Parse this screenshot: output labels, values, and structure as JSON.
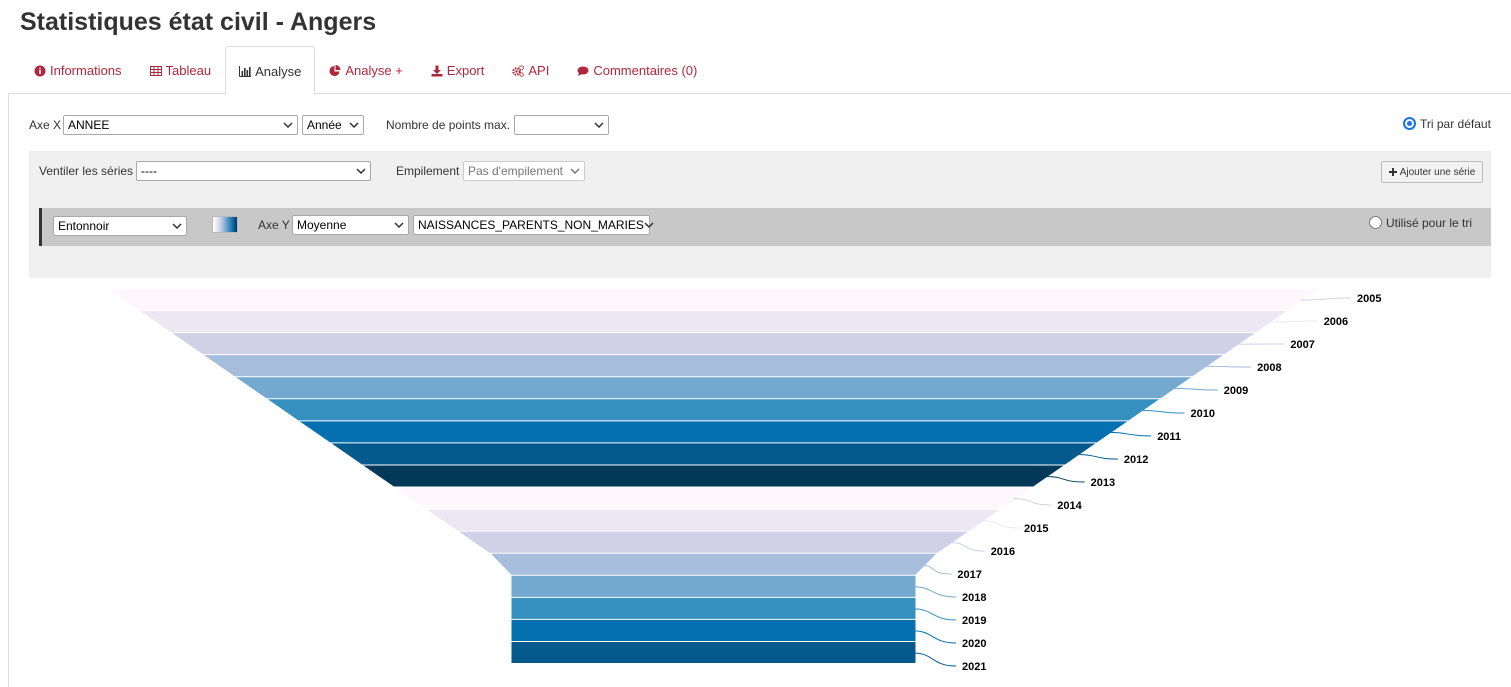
{
  "page": {
    "title": "Statistiques état civil - Angers"
  },
  "tabs": [
    {
      "label": "Informations",
      "icon": "info-circle-icon"
    },
    {
      "label": "Tableau",
      "icon": "table-icon"
    },
    {
      "label": "Analyse",
      "icon": "bar-chart-icon",
      "active": true
    },
    {
      "label": "Analyse +",
      "icon": "pie-chart-icon"
    },
    {
      "label": "Export",
      "icon": "download-icon"
    },
    {
      "label": "API",
      "icon": "cogs-icon"
    },
    {
      "label": "Commentaires (0)",
      "icon": "comments-icon"
    }
  ],
  "controls": {
    "axe_x_label": "Axe X",
    "axe_x_value": "ANNEE",
    "axe_x_format": "Année",
    "max_points_label": "Nombre de points max.",
    "max_points_value": "",
    "sort_default_label": "Tri par défaut",
    "ventiler_label": "Ventiler les séries",
    "ventiler_value": "----",
    "empilement_label": "Empilement",
    "empilement_value": "Pas d'empilement",
    "add_series_label": "Ajouter une série"
  },
  "series": {
    "chart_type": "Entonnoir",
    "axe_y_label": "Axe Y",
    "aggregation": "Moyenne",
    "field": "NAISSANCES_PARENTS_NON_MARIES",
    "used_for_sort_label": "Utilisé pour le tri"
  },
  "colors": {
    "accent": "#b0273d",
    "palette": [
      "#fff7fb",
      "#ece7f2",
      "#d0d1e6",
      "#a6bddb",
      "#74a9cf",
      "#3690c0",
      "#0570b0",
      "#045a8d",
      "#023858"
    ]
  },
  "chart_data": {
    "type": "funnel",
    "categories": [
      "2005",
      "2006",
      "2007",
      "2008",
      "2009",
      "2010",
      "2011",
      "2012",
      "2013",
      "2014",
      "2015",
      "2016",
      "2017",
      "2018",
      "2019",
      "2020",
      "2021"
    ]
  }
}
